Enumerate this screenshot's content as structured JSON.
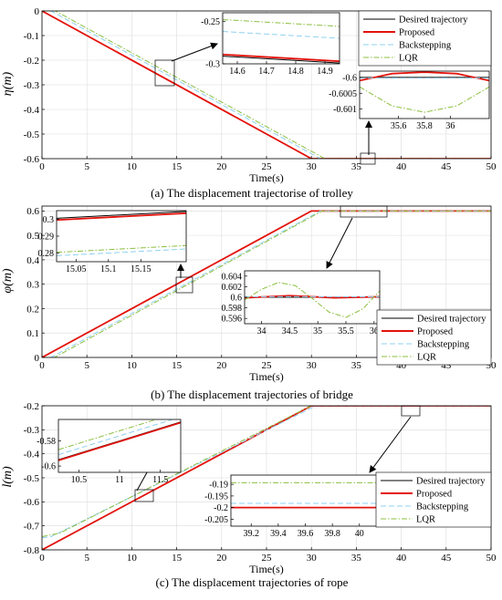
{
  "chart_data": [
    {
      "type": "line",
      "caption": "(a) The displacement trajectorise of trolley",
      "xlabel": "Time(s)",
      "ylabel": "η(m)",
      "xlim": [
        0,
        50
      ],
      "ylim": [
        -0.6,
        0
      ],
      "xticks": [
        0,
        5,
        10,
        15,
        20,
        25,
        30,
        35,
        40,
        45,
        50
      ],
      "yticks": [
        0,
        -0.1,
        -0.2,
        -0.3,
        -0.4,
        -0.5,
        -0.6
      ],
      "ytick_labels": [
        "0",
        "-0.1",
        "-0.2",
        "-0.3",
        "-0.4",
        "-0.5",
        "-0.6"
      ],
      "grid": true,
      "legend_position": "top-right",
      "series": [
        {
          "name": "Desired trajectory",
          "color": "#000000",
          "style": "solid",
          "x": [
            0,
            30,
            50
          ],
          "y": [
            0,
            -0.6,
            -0.6
          ]
        },
        {
          "name": "Proposed",
          "color": "#e3120b",
          "style": "solid",
          "x": [
            0,
            30,
            50
          ],
          "y": [
            0,
            -0.6,
            -0.6
          ]
        },
        {
          "name": "Backstepping",
          "color": "#8fd0f0",
          "style": "dashed",
          "x": [
            0,
            1,
            31,
            50
          ],
          "y": [
            0,
            0,
            -0.6,
            -0.6
          ]
        },
        {
          "name": "LQR",
          "color": "#8cbf3f",
          "style": "dashdot",
          "x": [
            0,
            1.5,
            31.5,
            50
          ],
          "y": [
            0,
            0,
            -0.6,
            -0.6
          ]
        }
      ],
      "insets": [
        {
          "xlim": [
            14.55,
            14.95
          ],
          "ylim": [
            -0.3,
            -0.24
          ],
          "xticks": [
            14.6,
            14.7,
            14.8,
            14.9
          ],
          "xtick_labels": [
            "14.6",
            "14.7",
            "14.8",
            "14.9"
          ],
          "yticks": [
            -0.25,
            -0.3
          ],
          "ytick_labels": [
            "-0.25",
            "-0.3"
          ],
          "series": [
            {
              "x": [
                14.55,
                14.95
              ],
              "y": [
                -0.291,
                -0.299
              ]
            },
            {
              "x": [
                14.55,
                14.95
              ],
              "y": [
                -0.289,
                -0.297
              ]
            },
            {
              "x": [
                14.55,
                14.95
              ],
              "y": [
                -0.262,
                -0.27
              ]
            },
            {
              "x": [
                14.55,
                14.95
              ],
              "y": [
                -0.248,
                -0.256
              ]
            }
          ]
        },
        {
          "xlim": [
            35.3,
            36.3
          ],
          "ylim": [
            -0.6013,
            -0.5998
          ],
          "xticks": [
            35.6,
            35.8,
            36
          ],
          "xtick_labels": [
            "35.6",
            "35.8",
            "36"
          ],
          "yticks": [
            -0.6,
            -0.6005,
            -0.601
          ],
          "ytick_labels": [
            "-0.6",
            "-0.6005",
            "-0.601"
          ],
          "series": [
            {
              "x": [
                35.3,
                36.3
              ],
              "y": [
                -0.6,
                -0.6
              ]
            },
            {
              "x": [
                35.3,
                35.55,
                35.8,
                36.05,
                36.3
              ],
              "y": [
                -0.6001,
                -0.59988,
                -0.59983,
                -0.59988,
                -0.6001
              ]
            },
            {
              "x": [
                35.3,
                36.3
              ],
              "y": [
                -0.60002,
                -0.60002
              ]
            },
            {
              "x": [
                35.3,
                35.55,
                35.8,
                36.05,
                36.3
              ],
              "y": [
                -0.6003,
                -0.6009,
                -0.6011,
                -0.6009,
                -0.6003
              ]
            }
          ]
        }
      ]
    },
    {
      "type": "line",
      "caption": "(b) The displacement trajectories of bridge",
      "xlabel": "Time(s)",
      "ylabel": "φ(m)",
      "xlim": [
        0,
        50
      ],
      "ylim": [
        0,
        0.62
      ],
      "xticks": [
        0,
        5,
        10,
        15,
        20,
        25,
        30,
        35,
        40,
        45,
        50
      ],
      "yticks": [
        0,
        0.1,
        0.2,
        0.3,
        0.4,
        0.5,
        0.6
      ],
      "ytick_labels": [
        "0",
        "0.1",
        "0.2",
        "0.3",
        "0.4",
        "0.5",
        "0.6"
      ],
      "grid": true,
      "legend_position": "right",
      "series": [
        {
          "name": "Desired trajectory",
          "color": "#000000",
          "style": "solid",
          "x": [
            0,
            30,
            50
          ],
          "y": [
            0,
            0.6,
            0.6
          ]
        },
        {
          "name": "Proposed",
          "color": "#e3120b",
          "style": "solid",
          "x": [
            0,
            30,
            50
          ],
          "y": [
            0,
            0.6,
            0.6
          ]
        },
        {
          "name": "Backstepping",
          "color": "#8fd0f0",
          "style": "dashed",
          "x": [
            0,
            1,
            31,
            50
          ],
          "y": [
            0,
            0,
            0.6,
            0.6
          ]
        },
        {
          "name": "LQR",
          "color": "#8cbf3f",
          "style": "dashdot",
          "x": [
            0,
            1.4,
            31.2,
            50
          ],
          "y": [
            0,
            0,
            0.6,
            0.6
          ]
        }
      ],
      "insets": [
        {
          "xlim": [
            15.02,
            15.22
          ],
          "ylim": [
            0.275,
            0.305
          ],
          "xticks": [
            15.05,
            15.1,
            15.15
          ],
          "xtick_labels": [
            "15.05",
            "15.1",
            "15.15"
          ],
          "yticks": [
            0.3,
            0.29,
            0.28
          ],
          "ytick_labels": [
            "0.3",
            "0.29",
            "0.28"
          ],
          "series": [
            {
              "x": [
                15.02,
                15.22
              ],
              "y": [
                0.3005,
                0.3045
              ]
            },
            {
              "x": [
                15.02,
                15.22
              ],
              "y": [
                0.2995,
                0.3035
              ]
            },
            {
              "x": [
                15.02,
                15.22
              ],
              "y": [
                0.2785,
                0.2825
              ]
            },
            {
              "x": [
                15.02,
                15.22
              ],
              "y": [
                0.2805,
                0.2845
              ]
            }
          ]
        },
        {
          "xlim": [
            33.7,
            36.1
          ],
          "ylim": [
            0.595,
            0.605
          ],
          "xticks": [
            34,
            34.5,
            35,
            35.5,
            36
          ],
          "xtick_labels": [
            "34",
            "34.5",
            "35",
            "35.5",
            "36"
          ],
          "yticks": [
            0.604,
            0.602,
            0.6,
            0.598,
            0.596
          ],
          "ytick_labels": [
            "0.604",
            "0.602",
            "0.6",
            "0.598",
            "0.596"
          ],
          "series": [
            {
              "x": [
                33.7,
                36.1
              ],
              "y": [
                0.6,
                0.6
              ]
            },
            {
              "x": [
                33.7,
                34.5,
                35.3,
                36.1
              ],
              "y": [
                0.5999,
                0.6003,
                0.5999,
                0.6001
              ]
            },
            {
              "x": [
                33.7,
                36.1
              ],
              "y": [
                0.6001,
                0.6001
              ]
            },
            {
              "x": [
                33.7,
                34.0,
                34.3,
                34.6,
                34.9,
                35.2,
                35.5,
                35.8,
                36.1
              ],
              "y": [
                0.5995,
                0.6015,
                0.6028,
                0.6022,
                0.5998,
                0.5972,
                0.5962,
                0.5978,
                0.6012
              ]
            }
          ]
        }
      ]
    },
    {
      "type": "line",
      "caption": "(c) The displacement trajectories of rope",
      "xlabel": "Time(s)",
      "ylabel": "l(m)",
      "xlim": [
        0,
        50
      ],
      "ylim": [
        -0.8,
        -0.2
      ],
      "xticks": [
        0,
        5,
        10,
        15,
        20,
        25,
        30,
        35,
        40,
        45,
        50
      ],
      "yticks": [
        -0.2,
        -0.3,
        -0.4,
        -0.5,
        -0.6,
        -0.7,
        -0.8
      ],
      "ytick_labels": [
        "-0.2",
        "-0.3",
        "-0.4",
        "-0.5",
        "-0.6",
        "-0.7",
        "-0.8"
      ],
      "grid": true,
      "legend_position": "bottom-right",
      "series": [
        {
          "name": "Desired trajectory",
          "color": "#000000",
          "style": "solid",
          "x": [
            0,
            30,
            50
          ],
          "y": [
            -0.8,
            -0.2,
            -0.2
          ]
        },
        {
          "name": "Proposed",
          "color": "#e3120b",
          "style": "solid",
          "x": [
            0,
            30,
            50
          ],
          "y": [
            -0.8,
            -0.2,
            -0.2
          ]
        },
        {
          "name": "Backstepping",
          "color": "#8fd0f0",
          "style": "dashed",
          "x": [
            0,
            1,
            30.5,
            50
          ],
          "y": [
            -0.75,
            -0.745,
            -0.2,
            -0.2
          ]
        },
        {
          "name": "LQR",
          "color": "#8cbf3f",
          "style": "dashdot",
          "x": [
            0,
            2,
            30.5,
            50
          ],
          "y": [
            -0.745,
            -0.73,
            -0.19,
            -0.19
          ]
        }
      ],
      "insets": [
        {
          "xlim": [
            10.25,
            11.75
          ],
          "ylim": [
            -0.605,
            -0.563
          ],
          "xticks": [
            10.5,
            11,
            11.5
          ],
          "xtick_labels": [
            "10.5",
            "11",
            "11.5"
          ],
          "yticks": [
            -0.58,
            -0.6
          ],
          "ytick_labels": [
            "-0.58",
            "-0.6"
          ],
          "series": [
            {
              "x": [
                10.25,
                11.75
              ],
              "y": [
                -0.595,
                -0.565
              ]
            },
            {
              "x": [
                10.25,
                11.75
              ],
              "y": [
                -0.5955,
                -0.5655
              ]
            },
            {
              "x": [
                10.25,
                11.75
              ],
              "y": [
                -0.591,
                -0.561
              ]
            },
            {
              "x": [
                10.25,
                11.75
              ],
              "y": [
                -0.587,
                -0.557
              ]
            }
          ]
        },
        {
          "xlim": [
            39.05,
            40.15
          ],
          "ylim": [
            -0.208,
            -0.186
          ],
          "xticks": [
            39.2,
            39.4,
            39.6,
            39.8,
            40
          ],
          "xtick_labels": [
            "39.2",
            "39.4",
            "39.6",
            "39.8",
            "40"
          ],
          "yticks": [
            -0.19,
            -0.195,
            -0.2,
            -0.205
          ],
          "ytick_labels": [
            "-0.19",
            "-0.195",
            "-0.2",
            "-0.205"
          ],
          "series": [
            {
              "x": [
                39.05,
                40.15
              ],
              "y": [
                -0.2,
                -0.2
              ]
            },
            {
              "x": [
                39.05,
                40.15
              ],
              "y": [
                -0.2,
                -0.2
              ]
            },
            {
              "x": [
                39.05,
                40.15
              ],
              "y": [
                -0.1982,
                -0.1982
              ]
            },
            {
              "x": [
                39.05,
                40.15
              ],
              "y": [
                -0.1893,
                -0.1893
              ]
            }
          ]
        }
      ]
    }
  ]
}
